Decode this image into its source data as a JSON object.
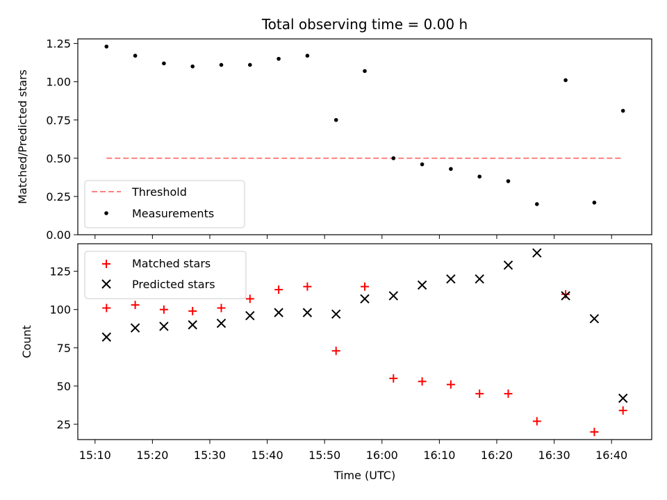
{
  "chart_data": [
    {
      "type": "scatter",
      "title": "Total observing time = 0.00 h",
      "xlabel": "",
      "ylabel": "Matched/Predicted stars",
      "ylim": [
        0.0,
        1.28
      ],
      "yticks": [
        "0.00",
        "0.25",
        "0.50",
        "0.75",
        "1.00",
        "1.25"
      ],
      "ytick_values": [
        0.0,
        0.25,
        0.5,
        0.75,
        1.0,
        1.25
      ],
      "legend_position": "lower-left",
      "threshold": {
        "name": "Threshold",
        "value": 0.5,
        "x_start": "15:12",
        "x_end": "16:42",
        "color": "#ff8080",
        "style": "dashed"
      },
      "series": [
        {
          "name": "Measurements",
          "marker": "dot",
          "color": "#000000",
          "x": [
            "15:12",
            "15:17",
            "15:22",
            "15:27",
            "15:32",
            "15:37",
            "15:42",
            "15:47",
            "15:52",
            "15:57",
            "16:02",
            "16:07",
            "16:12",
            "16:17",
            "16:22",
            "16:27",
            "16:32",
            "16:37",
            "16:42"
          ],
          "values": [
            1.23,
            1.17,
            1.12,
            1.1,
            1.11,
            1.11,
            1.15,
            1.17,
            0.75,
            1.07,
            0.5,
            0.46,
            0.43,
            0.38,
            0.35,
            0.2,
            1.01,
            0.21,
            0.81
          ]
        }
      ]
    },
    {
      "type": "scatter",
      "title": "",
      "xlabel": "Time (UTC)",
      "ylabel": "Count",
      "ylim": [
        15,
        143
      ],
      "xlim": [
        "15:07",
        "16:47"
      ],
      "xticks": [
        "15:10",
        "15:20",
        "15:30",
        "15:40",
        "15:50",
        "16:00",
        "16:10",
        "16:20",
        "16:30",
        "16:40"
      ],
      "yticks": [
        "25",
        "50",
        "75",
        "100",
        "125"
      ],
      "ytick_values": [
        25,
        50,
        75,
        100,
        125
      ],
      "legend_position": "upper-left",
      "series": [
        {
          "name": "Matched stars",
          "marker": "plus",
          "color": "#ff0000",
          "x": [
            "15:12",
            "15:17",
            "15:22",
            "15:27",
            "15:32",
            "15:37",
            "15:42",
            "15:47",
            "15:52",
            "15:57",
            "16:02",
            "16:07",
            "16:12",
            "16:17",
            "16:22",
            "16:27",
            "16:32",
            "16:37",
            "16:42"
          ],
          "values": [
            101,
            103,
            100,
            99,
            101,
            107,
            113,
            115,
            73,
            115,
            55,
            53,
            51,
            45,
            45,
            27,
            110,
            20,
            34
          ]
        },
        {
          "name": "Predicted stars",
          "marker": "x",
          "color": "#000000",
          "x": [
            "15:12",
            "15:17",
            "15:22",
            "15:27",
            "15:32",
            "15:37",
            "15:42",
            "15:47",
            "15:52",
            "15:57",
            "16:02",
            "16:07",
            "16:12",
            "16:17",
            "16:22",
            "16:27",
            "16:32",
            "16:37",
            "16:42"
          ],
          "values": [
            82,
            88,
            89,
            90,
            91,
            96,
            98,
            98,
            97,
            107,
            109,
            116,
            120,
            120,
            129,
            137,
            109,
            94,
            42
          ]
        }
      ]
    }
  ]
}
